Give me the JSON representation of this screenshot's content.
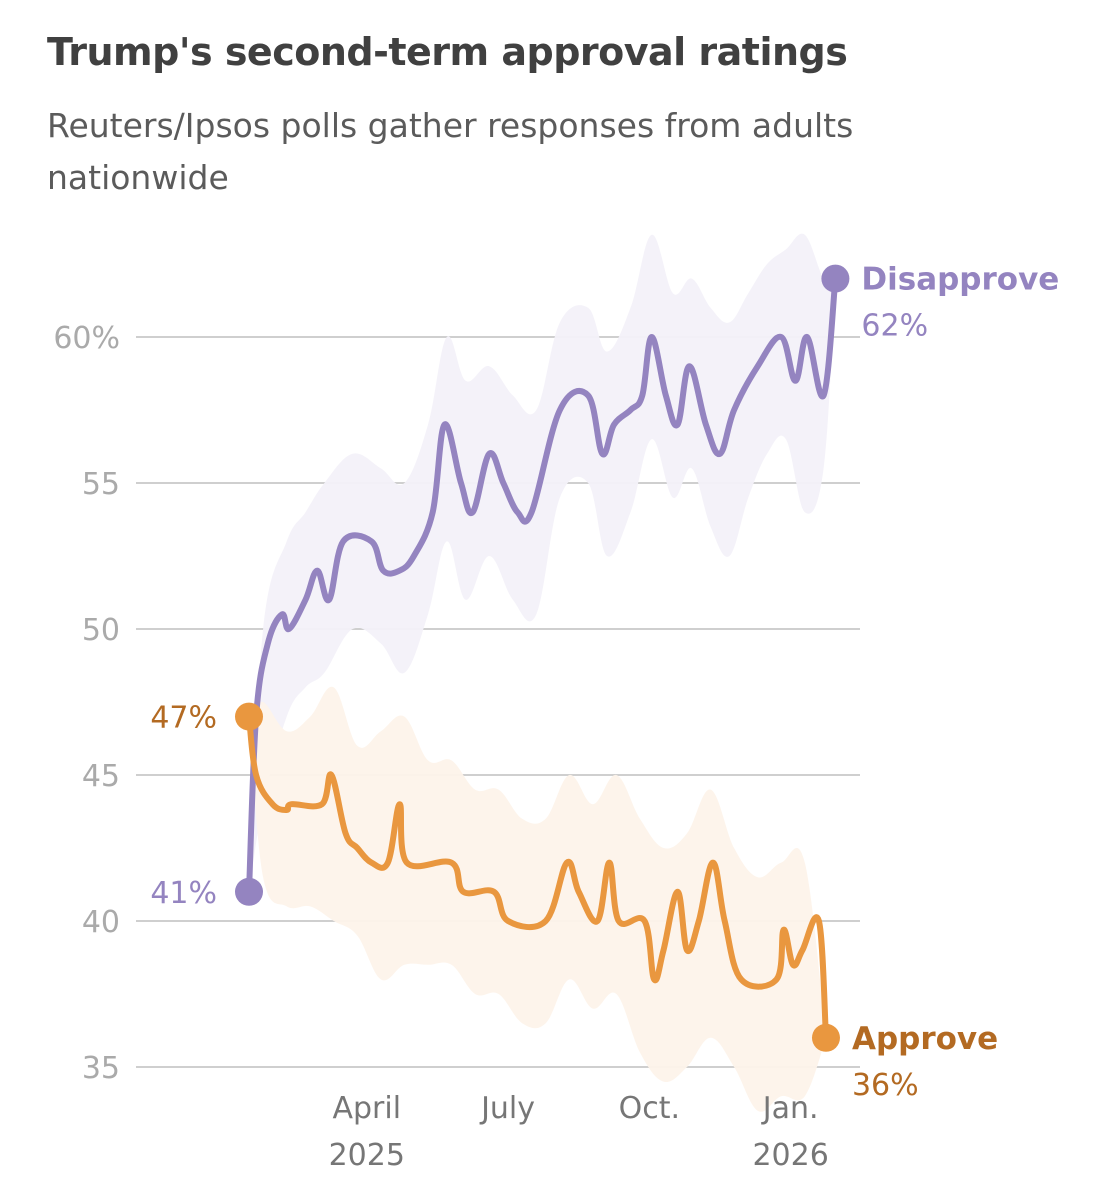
{
  "chart_data": {
    "type": "line",
    "title": "Trump's second-term approval ratings",
    "subtitle": "Reuters/Ipsos polls gather responses from adults nationwide",
    "xlabel": "",
    "ylabel": "",
    "ylim": [
      35,
      62
    ],
    "grid": true,
    "y_ticks": [
      {
        "value": 60,
        "label": "60%"
      },
      {
        "value": 55,
        "label": "55"
      },
      {
        "value": 50,
        "label": "50"
      },
      {
        "value": 45,
        "label": "45"
      },
      {
        "value": 40,
        "label": "40"
      },
      {
        "value": 35,
        "label": "35"
      }
    ],
    "x_ticks": [
      {
        "month": 2.5,
        "label": "April",
        "sublabel": "2025"
      },
      {
        "month": 5.5,
        "label": "July",
        "sublabel": ""
      },
      {
        "month": 8.5,
        "label": "Oct.",
        "sublabel": ""
      },
      {
        "month": 11.5,
        "label": "Jan.",
        "sublabel": "2026"
      }
    ],
    "series": [
      {
        "name": "Disapprove",
        "color": "#9484c0",
        "band_color": "#f3f1f9",
        "start_label": "41%",
        "end_label": "62%",
        "points": [
          [
            0,
            41
          ],
          [
            0.15,
            47
          ],
          [
            0.4,
            49.5
          ],
          [
            0.7,
            50.5
          ],
          [
            0.85,
            50
          ],
          [
            1.2,
            51
          ],
          [
            1.45,
            52
          ],
          [
            1.7,
            51
          ],
          [
            2.0,
            53
          ],
          [
            2.6,
            53
          ],
          [
            2.85,
            52
          ],
          [
            3.2,
            52
          ],
          [
            3.5,
            52.5
          ],
          [
            3.9,
            54
          ],
          [
            4.15,
            57
          ],
          [
            4.5,
            55
          ],
          [
            4.75,
            54
          ],
          [
            5.1,
            56
          ],
          [
            5.4,
            55
          ],
          [
            5.7,
            54
          ],
          [
            6.0,
            54
          ],
          [
            6.6,
            57.5
          ],
          [
            7.2,
            58
          ],
          [
            7.5,
            56
          ],
          [
            7.75,
            57
          ],
          [
            8.1,
            57.5
          ],
          [
            8.35,
            58
          ],
          [
            8.55,
            60
          ],
          [
            8.85,
            58
          ],
          [
            9.1,
            57
          ],
          [
            9.35,
            59
          ],
          [
            9.7,
            57
          ],
          [
            10.0,
            56
          ],
          [
            10.3,
            57.5
          ],
          [
            10.8,
            59
          ],
          [
            11.3,
            60
          ],
          [
            11.6,
            58.5
          ],
          [
            11.85,
            60
          ],
          [
            12.2,
            58
          ],
          [
            12.45,
            62
          ]
        ],
        "band_upper": [
          [
            0,
            41
          ],
          [
            0.3,
            50
          ],
          [
            0.8,
            53
          ],
          [
            1.2,
            54
          ],
          [
            1.6,
            55
          ],
          [
            2.2,
            56
          ],
          [
            2.8,
            55.5
          ],
          [
            3.3,
            55
          ],
          [
            3.8,
            57
          ],
          [
            4.2,
            60
          ],
          [
            4.6,
            58.5
          ],
          [
            5.1,
            59
          ],
          [
            5.6,
            58
          ],
          [
            6.1,
            57.5
          ],
          [
            6.6,
            60.5
          ],
          [
            7.2,
            61
          ],
          [
            7.6,
            59.5
          ],
          [
            8.1,
            61
          ],
          [
            8.55,
            63.5
          ],
          [
            9.0,
            61.5
          ],
          [
            9.4,
            62
          ],
          [
            9.8,
            61
          ],
          [
            10.2,
            60.5
          ],
          [
            10.6,
            61.5
          ],
          [
            11.0,
            62.5
          ],
          [
            11.4,
            63
          ],
          [
            11.8,
            63.5
          ],
          [
            12.2,
            62
          ],
          [
            12.45,
            62
          ]
        ],
        "band_lower": [
          [
            0,
            41
          ],
          [
            0.3,
            44
          ],
          [
            0.8,
            47
          ],
          [
            1.2,
            48
          ],
          [
            1.6,
            48.5
          ],
          [
            2.2,
            50
          ],
          [
            2.8,
            49.5
          ],
          [
            3.3,
            48.5
          ],
          [
            3.8,
            50.5
          ],
          [
            4.2,
            53
          ],
          [
            4.6,
            51
          ],
          [
            5.1,
            52.5
          ],
          [
            5.6,
            51
          ],
          [
            6.1,
            50.5
          ],
          [
            6.6,
            54.5
          ],
          [
            7.2,
            55
          ],
          [
            7.6,
            52.5
          ],
          [
            8.1,
            54
          ],
          [
            8.55,
            56.5
          ],
          [
            9.0,
            54.5
          ],
          [
            9.4,
            55.5
          ],
          [
            9.8,
            53.5
          ],
          [
            10.2,
            52.5
          ],
          [
            10.6,
            54.5
          ],
          [
            11.0,
            56
          ],
          [
            11.4,
            56.5
          ],
          [
            11.8,
            54
          ],
          [
            12.2,
            55.5
          ],
          [
            12.45,
            62
          ]
        ]
      },
      {
        "name": "Approve",
        "color": "#e9973f",
        "band_color": "#fdf3ea",
        "label_color": "#b36a22",
        "start_label": "47%",
        "end_label": "36%",
        "points": [
          [
            0,
            47
          ],
          [
            0.15,
            45
          ],
          [
            0.5,
            44
          ],
          [
            0.8,
            43.8
          ],
          [
            0.9,
            44
          ],
          [
            1.55,
            44
          ],
          [
            1.75,
            45
          ],
          [
            2.05,
            43
          ],
          [
            2.3,
            42.5
          ],
          [
            2.6,
            42
          ],
          [
            2.95,
            42
          ],
          [
            3.2,
            44
          ],
          [
            3.35,
            42
          ],
          [
            4.3,
            42
          ],
          [
            4.55,
            41
          ],
          [
            5.2,
            41
          ],
          [
            5.5,
            40
          ],
          [
            6.3,
            40
          ],
          [
            6.75,
            42
          ],
          [
            7.0,
            41
          ],
          [
            7.4,
            40
          ],
          [
            7.65,
            42
          ],
          [
            7.85,
            40
          ],
          [
            8.4,
            40
          ],
          [
            8.6,
            38
          ],
          [
            8.8,
            39
          ],
          [
            9.1,
            41
          ],
          [
            9.3,
            39
          ],
          [
            9.55,
            40
          ],
          [
            9.85,
            42
          ],
          [
            10.1,
            40
          ],
          [
            10.45,
            38
          ],
          [
            11.2,
            38
          ],
          [
            11.35,
            39.7
          ],
          [
            11.55,
            38.5
          ],
          [
            11.75,
            39
          ],
          [
            12.1,
            40
          ],
          [
            12.25,
            36
          ]
        ],
        "band_upper": [
          [
            0,
            47
          ],
          [
            0.3,
            47.5
          ],
          [
            0.8,
            46.5
          ],
          [
            1.3,
            47
          ],
          [
            1.8,
            48
          ],
          [
            2.3,
            46
          ],
          [
            2.8,
            46.5
          ],
          [
            3.3,
            47
          ],
          [
            3.8,
            45.5
          ],
          [
            4.3,
            45.5
          ],
          [
            4.8,
            44.5
          ],
          [
            5.3,
            44.5
          ],
          [
            5.8,
            43.5
          ],
          [
            6.3,
            43.5
          ],
          [
            6.8,
            45
          ],
          [
            7.3,
            44
          ],
          [
            7.8,
            45
          ],
          [
            8.3,
            43.5
          ],
          [
            8.8,
            42.5
          ],
          [
            9.3,
            43
          ],
          [
            9.8,
            44.5
          ],
          [
            10.3,
            42.5
          ],
          [
            10.8,
            41.5
          ],
          [
            11.3,
            42
          ],
          [
            11.8,
            42
          ],
          [
            12.25,
            36
          ]
        ],
        "band_lower": [
          [
            0,
            47
          ],
          [
            0.3,
            41.5
          ],
          [
            0.8,
            40.5
          ],
          [
            1.3,
            40.5
          ],
          [
            1.8,
            40
          ],
          [
            2.3,
            39.5
          ],
          [
            2.8,
            38
          ],
          [
            3.3,
            38.5
          ],
          [
            3.8,
            38.5
          ],
          [
            4.3,
            38.5
          ],
          [
            4.8,
            37.5
          ],
          [
            5.3,
            37.5
          ],
          [
            5.8,
            36.5
          ],
          [
            6.3,
            36.5
          ],
          [
            6.8,
            38
          ],
          [
            7.3,
            37
          ],
          [
            7.8,
            37.5
          ],
          [
            8.3,
            35.5
          ],
          [
            8.8,
            34.5
          ],
          [
            9.3,
            35
          ],
          [
            9.8,
            36
          ],
          [
            10.3,
            35
          ],
          [
            10.8,
            33.5
          ],
          [
            11.3,
            34
          ],
          [
            11.8,
            34
          ],
          [
            12.25,
            36
          ]
        ]
      }
    ]
  }
}
